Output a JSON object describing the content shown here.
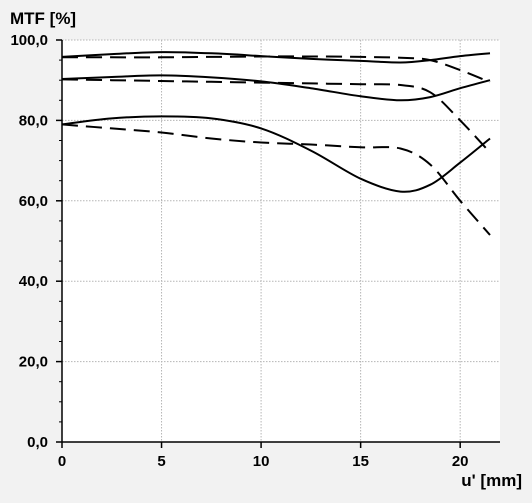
{
  "chart_data": {
    "type": "line",
    "ylabel": "MTF [%]",
    "xlabel": "u' [mm]",
    "xlim": [
      0,
      22
    ],
    "ylim": [
      0,
      100
    ],
    "xticks": [
      0,
      5,
      10,
      15,
      20
    ],
    "yticks": [
      0,
      20,
      40,
      60,
      80,
      100
    ],
    "xtick_labels": [
      "0",
      "5",
      "10",
      "15",
      "20"
    ],
    "ytick_labels": [
      "0,0",
      "20,0",
      "40,0",
      "60,0",
      "80,0",
      "100,0"
    ],
    "grid": true,
    "series": [
      {
        "style": "solid",
        "x": [
          0,
          2.5,
          5,
          7.5,
          10,
          12.5,
          15,
          17,
          18.5,
          20,
          21.5
        ],
        "y": [
          95.8,
          96.5,
          97.0,
          96.7,
          96.0,
          95.3,
          94.8,
          94.4,
          95.0,
          96.0,
          96.7
        ]
      },
      {
        "style": "dashed",
        "x": [
          0,
          2.5,
          5,
          7.5,
          10,
          12.5,
          15,
          17,
          18.5,
          20,
          21.5
        ],
        "y": [
          95.7,
          95.7,
          95.7,
          95.8,
          95.9,
          95.9,
          95.8,
          95.6,
          95.0,
          92.5,
          89.5
        ]
      },
      {
        "style": "solid",
        "x": [
          0,
          2.5,
          5,
          7.5,
          10,
          12.5,
          15,
          17,
          18.5,
          20,
          21.5
        ],
        "y": [
          90.3,
          90.8,
          91.2,
          90.7,
          89.7,
          88.0,
          86.0,
          85.0,
          85.8,
          88.0,
          90.0
        ]
      },
      {
        "style": "dashed",
        "x": [
          0,
          2.5,
          5,
          7.5,
          10,
          12.5,
          15,
          17,
          18.5,
          20,
          21.5
        ],
        "y": [
          90.2,
          90.0,
          89.8,
          89.6,
          89.4,
          89.2,
          89.0,
          88.8,
          87.0,
          80.0,
          72.0
        ]
      },
      {
        "style": "solid",
        "x": [
          0,
          2.5,
          5,
          7.5,
          10,
          12.5,
          15,
          17,
          18.5,
          20,
          21.5
        ],
        "y": [
          79.0,
          80.5,
          81.0,
          80.5,
          78.0,
          72.5,
          65.5,
          62.3,
          64.0,
          69.5,
          75.5
        ]
      },
      {
        "style": "dashed",
        "x": [
          0,
          2.5,
          5,
          7.5,
          10,
          12.5,
          15,
          17,
          18.5,
          20,
          21.5
        ],
        "y": [
          79.0,
          78.0,
          77.0,
          75.5,
          74.5,
          74.0,
          73.3,
          73.0,
          69.0,
          60.0,
          51.5
        ]
      }
    ]
  }
}
